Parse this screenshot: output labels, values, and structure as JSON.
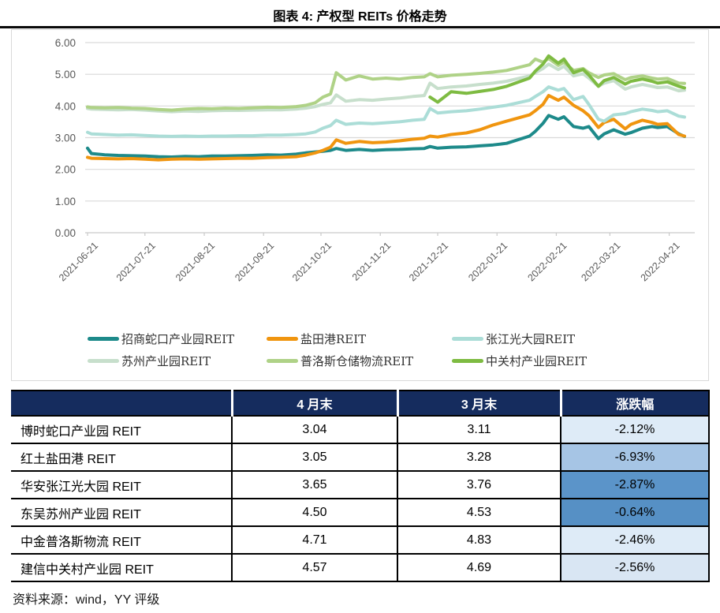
{
  "title": "图表 4: 产权型 REITs 价格走势",
  "source_note": "资料来源：wind，YY 评级",
  "chart_data": {
    "type": "line",
    "title": "图表 4: 产权型 REITs 价格走势",
    "xlabel": "",
    "ylabel": "",
    "ylim": [
      0,
      6
    ],
    "grid": "horizontal",
    "legend_position": "bottom",
    "y_tick_labels": [
      "0.00",
      "1.00",
      "2.00",
      "3.00",
      "4.00",
      "5.00",
      "6.00"
    ],
    "x_tick_labels": [
      "2021-06-21",
      "2021-07-21",
      "2021-08-21",
      "2021-09-21",
      "2021-10-21",
      "2021-11-21",
      "2021-12-21",
      "2022-01-21",
      "2022-02-21",
      "2022-03-21",
      "2022-04-21"
    ],
    "x_range": [
      "2021-06-21",
      "2022-04-29"
    ],
    "dates": [
      "2021-06-21",
      "2021-06-23",
      "2021-06-30",
      "2021-07-07",
      "2021-07-14",
      "2021-07-21",
      "2021-07-28",
      "2021-08-04",
      "2021-08-11",
      "2021-08-18",
      "2021-08-25",
      "2021-09-01",
      "2021-09-08",
      "2021-09-15",
      "2021-09-23",
      "2021-09-30",
      "2021-10-08",
      "2021-10-13",
      "2021-10-18",
      "2021-10-22",
      "2021-10-26",
      "2021-10-29",
      "2021-11-03",
      "2021-11-10",
      "2021-11-17",
      "2021-11-24",
      "2021-12-01",
      "2021-12-08",
      "2021-12-14",
      "2021-12-17",
      "2021-12-21",
      "2021-12-28",
      "2022-01-05",
      "2022-01-12",
      "2022-01-19",
      "2022-01-26",
      "2022-02-07",
      "2022-02-10",
      "2022-02-14",
      "2022-02-17",
      "2022-02-22",
      "2022-02-25",
      "2022-03-02",
      "2022-03-07",
      "2022-03-10",
      "2022-03-15",
      "2022-03-18",
      "2022-03-23",
      "2022-03-29",
      "2022-04-01",
      "2022-04-07",
      "2022-04-12",
      "2022-04-15",
      "2022-04-20",
      "2022-04-26",
      "2022-04-29"
    ],
    "series": [
      {
        "name": "招商蛇口产业园REIT",
        "color": "#1D8A8A",
        "values": [
          2.67,
          2.5,
          2.46,
          2.44,
          2.43,
          2.42,
          2.4,
          2.39,
          2.41,
          2.4,
          2.42,
          2.42,
          2.43,
          2.44,
          2.46,
          2.45,
          2.48,
          2.52,
          2.55,
          2.57,
          2.6,
          2.66,
          2.6,
          2.63,
          2.6,
          2.62,
          2.63,
          2.65,
          2.66,
          2.72,
          2.67,
          2.7,
          2.71,
          2.74,
          2.77,
          2.82,
          3.05,
          3.2,
          3.45,
          3.7,
          3.58,
          3.66,
          3.35,
          3.3,
          3.35,
          2.97,
          3.12,
          3.25,
          3.11,
          3.16,
          3.3,
          3.35,
          3.32,
          3.35,
          3.12,
          3.04
        ]
      },
      {
        "name": "盐田港REIT",
        "color": "#F0950F",
        "values": [
          2.38,
          2.35,
          2.34,
          2.33,
          2.34,
          2.32,
          2.3,
          2.32,
          2.33,
          2.32,
          2.33,
          2.34,
          2.35,
          2.35,
          2.37,
          2.38,
          2.4,
          2.45,
          2.52,
          2.6,
          2.7,
          2.93,
          2.82,
          2.88,
          2.84,
          2.86,
          2.9,
          2.95,
          2.98,
          3.05,
          3.02,
          3.1,
          3.15,
          3.25,
          3.4,
          3.52,
          3.72,
          3.85,
          4.05,
          4.33,
          4.18,
          4.28,
          4.02,
          3.85,
          3.7,
          3.32,
          3.48,
          3.58,
          3.28,
          3.42,
          3.55,
          3.48,
          3.42,
          3.44,
          3.1,
          3.05
        ]
      },
      {
        "name": "张江光大园REIT",
        "color": "#ABDDD7",
        "values": [
          3.17,
          3.12,
          3.1,
          3.08,
          3.09,
          3.07,
          3.05,
          3.04,
          3.05,
          3.04,
          3.05,
          3.05,
          3.06,
          3.06,
          3.08,
          3.08,
          3.1,
          3.12,
          3.18,
          3.3,
          3.38,
          3.55,
          3.42,
          3.46,
          3.44,
          3.47,
          3.5,
          3.55,
          3.58,
          3.92,
          3.78,
          3.82,
          3.85,
          3.9,
          3.96,
          4.02,
          4.18,
          4.3,
          4.45,
          4.6,
          4.5,
          4.55,
          4.2,
          4.3,
          4.05,
          3.58,
          3.52,
          3.72,
          3.76,
          3.82,
          3.9,
          3.86,
          3.82,
          3.85,
          3.68,
          3.65
        ]
      },
      {
        "name": "苏州产业园REIT",
        "color": "#C7DFCC",
        "values": [
          3.92,
          3.9,
          3.89,
          3.88,
          3.89,
          3.87,
          3.84,
          3.82,
          3.84,
          3.83,
          3.85,
          3.86,
          3.86,
          3.87,
          3.88,
          3.88,
          3.9,
          3.93,
          3.98,
          4.05,
          4.1,
          4.35,
          4.15,
          4.2,
          4.18,
          4.22,
          4.25,
          4.3,
          4.33,
          4.72,
          4.55,
          4.6,
          4.63,
          4.68,
          4.72,
          4.78,
          4.95,
          5.05,
          5.18,
          5.32,
          5.15,
          5.25,
          4.95,
          5.02,
          4.88,
          4.62,
          4.72,
          4.8,
          4.53,
          4.6,
          4.68,
          4.62,
          4.58,
          4.6,
          4.48,
          4.5
        ]
      },
      {
        "name": "普洛斯仓储物流REIT",
        "color": "#AFD287",
        "values": [
          3.97,
          3.95,
          3.94,
          3.95,
          3.93,
          3.92,
          3.89,
          3.87,
          3.9,
          3.92,
          3.91,
          3.93,
          3.92,
          3.94,
          3.96,
          3.95,
          3.98,
          4.02,
          4.1,
          4.28,
          4.38,
          5.05,
          4.82,
          4.95,
          4.85,
          4.88,
          4.85,
          4.9,
          4.92,
          5.02,
          4.92,
          4.97,
          5.0,
          5.03,
          5.07,
          5.12,
          5.3,
          5.48,
          5.38,
          5.5,
          5.28,
          5.38,
          5.12,
          5.18,
          5.05,
          4.9,
          4.98,
          5.02,
          4.83,
          4.9,
          4.95,
          4.88,
          4.85,
          4.87,
          4.72,
          4.71
        ]
      },
      {
        "name": "中关村产业园REIT",
        "color": "#7EBB42",
        "values": [
          null,
          null,
          null,
          null,
          null,
          null,
          null,
          null,
          null,
          null,
          null,
          null,
          null,
          null,
          null,
          null,
          null,
          null,
          null,
          null,
          null,
          null,
          null,
          null,
          null,
          null,
          null,
          null,
          null,
          4.28,
          4.12,
          4.45,
          4.4,
          4.46,
          4.52,
          4.62,
          4.88,
          5.1,
          5.32,
          5.58,
          5.35,
          5.48,
          5.05,
          5.15,
          4.98,
          4.62,
          4.8,
          4.9,
          4.69,
          4.78,
          4.85,
          4.78,
          4.72,
          4.76,
          4.62,
          4.57
        ]
      }
    ]
  },
  "table": {
    "headers": [
      "",
      "4 月末",
      "3 月末",
      "涨跌幅"
    ],
    "header_bg": "#152C5E",
    "rows": [
      {
        "name": "博时蛇口产业园 REIT",
        "apr": "3.04",
        "mar": "3.11",
        "change": "-2.12%",
        "change_bg": "#DEEBF7"
      },
      {
        "name": "红土盐田港 REIT",
        "apr": "3.05",
        "mar": "3.28",
        "change": "-6.93%",
        "change_bg": "#A6C5E5"
      },
      {
        "name": "华安张江光大园 REIT",
        "apr": "3.65",
        "mar": "3.76",
        "change": "-2.87%",
        "change_bg": "#5B94C9"
      },
      {
        "name": "东吴苏州产业园 REIT",
        "apr": "4.50",
        "mar": "4.53",
        "change": "-0.64%",
        "change_bg": "#5690C5"
      },
      {
        "name": "中金普洛斯物流 REIT",
        "apr": "4.71",
        "mar": "4.83",
        "change": "-2.46%",
        "change_bg": "#DEEBF7"
      },
      {
        "name": "建信中关村产业园 REIT",
        "apr": "4.57",
        "mar": "4.69",
        "change": "-2.56%",
        "change_bg": "#D9E6F3"
      }
    ]
  }
}
